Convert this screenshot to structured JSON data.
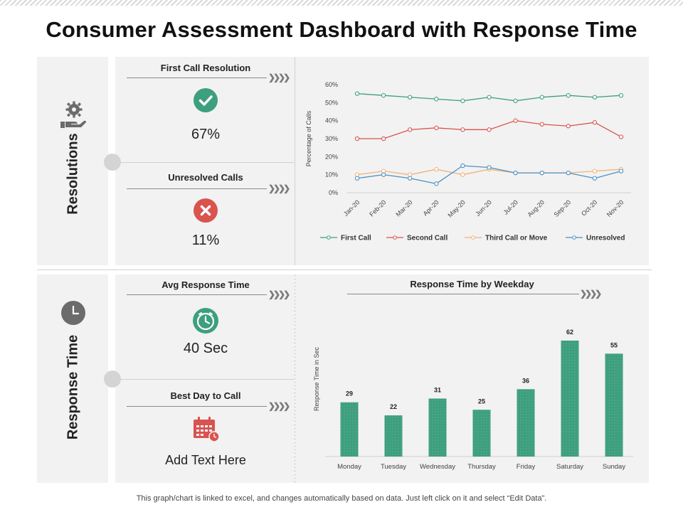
{
  "title": "Consumer Assessment Dashboard with Response Time",
  "footer": "This graph/chart is linked to excel, and changes automatically based on data. Just left click on it and select “Edit Data”.",
  "colors": {
    "green": "#3d9f7d",
    "red": "#d9534f",
    "orange": "#f0b27a",
    "blue": "#4a90c2",
    "panel": "#f2f2f2"
  },
  "sections": {
    "resolutions": {
      "label": "Resolutions",
      "icon": "hand-gear-icon",
      "kpis": [
        {
          "title": "First Call Resolution",
          "value": "67%",
          "icon": "check-circle-icon"
        },
        {
          "title": "Unresolved Calls",
          "value": "11%",
          "icon": "x-circle-icon"
        }
      ]
    },
    "response": {
      "label": "Response Time",
      "icon": "clock-icon",
      "kpis": [
        {
          "title": "Avg Response Time",
          "value": "40 Sec",
          "icon": "clock-icon"
        },
        {
          "title": "Best Day to Call",
          "value": "Add Text Here",
          "icon": "calendar-icon"
        }
      ]
    }
  },
  "chart_data": [
    {
      "type": "line",
      "title": "",
      "xlabel": "",
      "ylabel": "Percentage of Calls",
      "ylim": [
        0,
        60
      ],
      "yticks": [
        "0%",
        "10%",
        "20%",
        "30%",
        "40%",
        "50%",
        "60%"
      ],
      "categories": [
        "Jan-20",
        "Feb-20",
        "Mar-20",
        "Apr-20",
        "May-20",
        "Jun-20",
        "Jul-20",
        "Aug-20",
        "Sep-20",
        "Oct-20",
        "Nov-20"
      ],
      "legend_position": "bottom",
      "grid": false,
      "series": [
        {
          "name": "First Call",
          "color": "#3d9f7d",
          "values": [
            55,
            54,
            53,
            52,
            51,
            53,
            51,
            53,
            54,
            53,
            54
          ]
        },
        {
          "name": "Second Call",
          "color": "#d9534f",
          "values": [
            30,
            30,
            35,
            36,
            35,
            35,
            40,
            38,
            37,
            39,
            31
          ]
        },
        {
          "name": "Third Call or Move",
          "color": "#f0b27a",
          "values": [
            10,
            12,
            10,
            13,
            10,
            13,
            11,
            11,
            11,
            12,
            13
          ]
        },
        {
          "name": "Unresolved",
          "color": "#4a90c2",
          "values": [
            8,
            10,
            8,
            5,
            15,
            14,
            11,
            11,
            11,
            8,
            12
          ]
        }
      ]
    },
    {
      "type": "bar",
      "title": "Response Time by Weekday",
      "xlabel": "",
      "ylabel": "Response Time in Sec",
      "ylim": [
        0,
        70
      ],
      "grid": false,
      "categories": [
        "Monday",
        "Tuesday",
        "Wednesday",
        "Thursday",
        "Friday",
        "Saturday",
        "Sunday"
      ],
      "values": [
        29,
        22,
        31,
        25,
        36,
        62,
        55
      ],
      "color": "#3d9f7d"
    }
  ]
}
